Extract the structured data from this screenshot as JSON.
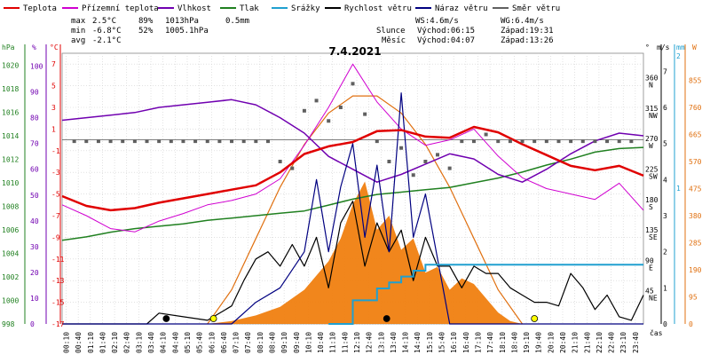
{
  "chart_data": {
    "type": "line",
    "title": "7.4.2021",
    "legend": [
      {
        "name": "Teplota",
        "color": "#e00000"
      },
      {
        "name": "Přízemní teplota",
        "color": "#d000d0"
      },
      {
        "name": "Vlhkost",
        "color": "#7000b0"
      },
      {
        "name": "Tlak",
        "color": "#208020"
      },
      {
        "name": "Srážky",
        "color": "#20a0d0"
      },
      {
        "name": "Rychlost větru",
        "color": "#000000"
      },
      {
        "name": "Náraz větru",
        "color": "#000080"
      },
      {
        "name": "Směr větru",
        "color": "#606060"
      }
    ],
    "stats": {
      "max_label": "max",
      "max_temp": "2.5°C",
      "max_hum": "89%",
      "max_press": "1013hPa",
      "precip": "0.5mm",
      "min_label": "min",
      "min_temp": "-6.8°C",
      "min_hum": "52%",
      "min_press": "1005.1hPa",
      "avg_label": "avg",
      "avg_temp": "-2.1°C",
      "ws": "WS:4.6m/s",
      "wg": "WG:6.4m/s",
      "sun_label": "Slunce",
      "sun_rise": "Východ:06:15",
      "sun_set": "Západ:19:31",
      "moon_label": "Měsíc",
      "moon_rise": "Východ:04:07",
      "moon_set": "Západ:13:26"
    },
    "axis_units": {
      "hpa": "hPa",
      "pct": "%",
      "degc": "°C",
      "deg": "°",
      "ms": "m/s",
      "mm": "mm",
      "wm2": "W",
      "time": "čas"
    },
    "xlabel": "čas",
    "x_ticks": [
      "00:10",
      "00:40",
      "01:10",
      "01:40",
      "02:10",
      "02:40",
      "03:10",
      "03:40",
      "04:10",
      "04:40",
      "05:10",
      "05:40",
      "06:10",
      "06:40",
      "07:10",
      "07:40",
      "08:10",
      "08:40",
      "09:10",
      "09:40",
      "10:10",
      "10:40",
      "11:10",
      "11:40",
      "12:10",
      "12:40",
      "13:10",
      "13:40",
      "14:10",
      "14:40",
      "15:10",
      "15:40",
      "16:10",
      "16:40",
      "17:10",
      "17:40",
      "18:10",
      "18:40",
      "19:10",
      "19:40",
      "20:10",
      "20:40",
      "21:10",
      "21:40",
      "22:10",
      "22:40",
      "23:10",
      "23:40"
    ],
    "pressure_ticks": [
      "1020",
      "1018",
      "1016",
      "1014",
      "1012",
      "1010",
      "1008",
      "1006",
      "1004",
      "1002",
      "1000",
      "998"
    ],
    "humidity_ticks": [
      "100",
      "90",
      "80",
      "70",
      "60",
      "50",
      "40",
      "30",
      "20",
      "10",
      "0"
    ],
    "temp_ticks": [
      "7",
      "5",
      "3",
      "1",
      "-1",
      "-3",
      "-5",
      "-7",
      "-9",
      "-11",
      "-13",
      "-15",
      "-17"
    ],
    "direction_ticks": [
      {
        "deg": "360",
        "dir": "N"
      },
      {
        "deg": "315",
        "dir": "NW"
      },
      {
        "deg": "270",
        "dir": "W"
      },
      {
        "deg": "225",
        "dir": "SW"
      },
      {
        "deg": "180",
        "dir": "S"
      },
      {
        "deg": "135",
        "dir": "SE"
      },
      {
        "deg": "90",
        "dir": "E"
      },
      {
        "deg": "45",
        "dir": "NE"
      }
    ],
    "wind_ticks": [
      "7",
      "6",
      "5",
      "4",
      "3",
      "2",
      "1",
      "0"
    ],
    "precip_ticks": [
      "2",
      "1"
    ],
    "solar_ticks": [
      "855",
      "760",
      "665",
      "570",
      "475",
      "380",
      "285",
      "190",
      "95",
      "0"
    ],
    "ylim_temp": [
      -17,
      8
    ],
    "ylim_pressure": [
      998,
      1021
    ],
    "ylim_humidity": [
      0,
      105
    ],
    "ylim_wind": [
      0,
      7.5
    ],
    "ylim_solar": [
      0,
      950
    ],
    "series": [
      {
        "name": "Teplota",
        "x": [
          0,
          1,
          2,
          3,
          4,
          5,
          6,
          7,
          8,
          9,
          10,
          11,
          12,
          13,
          14,
          15,
          16,
          17,
          18,
          19,
          20,
          21,
          22,
          23,
          24
        ],
        "values": [
          -5.2,
          -6.1,
          -6.5,
          -6.3,
          -5.8,
          -5.4,
          -5.0,
          -4.6,
          -4.2,
          -3.0,
          -1.3,
          -0.6,
          -0.2,
          0.8,
          0.9,
          0.3,
          0.2,
          1.2,
          0.7,
          -0.4,
          -1.4,
          -2.4,
          -2.8,
          -2.4,
          -3.3
        ]
      },
      {
        "name": "Přízemní teplota",
        "x": [
          0,
          1,
          2,
          3,
          4,
          5,
          6,
          7,
          8,
          9,
          10,
          11,
          12,
          13,
          14,
          15,
          16,
          17,
          18,
          19,
          20,
          21,
          22,
          23,
          24
        ],
        "values": [
          -6.0,
          -7.0,
          -8.2,
          -8.5,
          -7.5,
          -6.8,
          -6.0,
          -5.6,
          -5.0,
          -3.6,
          -0.5,
          3.0,
          7.0,
          3.5,
          1.0,
          -0.5,
          0.0,
          1.0,
          -1.5,
          -3.5,
          -4.5,
          -5.0,
          -5.5,
          -4.0,
          -6.5
        ]
      },
      {
        "name": "Vlhkost",
        "x": [
          0,
          1,
          2,
          3,
          4,
          5,
          6,
          7,
          8,
          9,
          10,
          11,
          12,
          13,
          14,
          15,
          16,
          17,
          18,
          19,
          20,
          21,
          22,
          23,
          24
        ],
        "values": [
          79,
          80,
          81,
          82,
          84,
          85,
          86,
          87,
          85,
          80,
          74,
          65,
          60,
          55,
          58,
          62,
          66,
          64,
          58,
          55,
          60,
          66,
          71,
          74,
          73
        ]
      },
      {
        "name": "Tlak",
        "x": [
          0,
          1,
          2,
          3,
          4,
          5,
          6,
          7,
          8,
          9,
          10,
          11,
          12,
          13,
          14,
          15,
          16,
          17,
          18,
          19,
          20,
          21,
          22,
          23,
          24
        ],
        "values": [
          1005.1,
          1005.4,
          1005.8,
          1006.1,
          1006.3,
          1006.5,
          1006.8,
          1007.0,
          1007.2,
          1007.4,
          1007.6,
          1008.1,
          1008.6,
          1009.0,
          1009.2,
          1009.4,
          1009.6,
          1010.0,
          1010.4,
          1010.9,
          1011.5,
          1012.0,
          1012.6,
          1012.9,
          1013.0
        ]
      },
      {
        "name": "Rychlost větru",
        "x": [
          0,
          3.5,
          4,
          5,
          6,
          7,
          7.5,
          8,
          8.5,
          9,
          9.5,
          10,
          10.5,
          11,
          11.5,
          12,
          12.5,
          13,
          13.5,
          14,
          14.5,
          15,
          15.5,
          16,
          16.5,
          17,
          17.5,
          18,
          18.5,
          19,
          19.5,
          20,
          20.5,
          21,
          21.5,
          22,
          22.5,
          23,
          23.5,
          24
        ],
        "values": [
          0,
          0,
          0.3,
          0.2,
          0.1,
          0.5,
          1.2,
          1.8,
          2.0,
          1.6,
          2.2,
          1.6,
          2.4,
          1.0,
          2.8,
          3.4,
          1.6,
          2.8,
          2.0,
          2.6,
          1.2,
          2.4,
          1.6,
          1.6,
          1.0,
          1.6,
          1.4,
          1.4,
          1.0,
          0.8,
          0.6,
          0.6,
          0.5,
          1.4,
          1.0,
          0.4,
          0.8,
          0.2,
          0.1,
          0.8
        ]
      },
      {
        "name": "Náraz větru",
        "x": [
          0,
          7,
          8,
          9,
          10,
          10.5,
          11,
          11.5,
          12,
          12.5,
          13,
          13.5,
          14,
          14.5,
          15,
          16,
          17,
          24
        ],
        "values": [
          0,
          0,
          0.6,
          1.0,
          2.0,
          4.0,
          2.0,
          3.8,
          5.0,
          2.4,
          4.4,
          2.0,
          6.4,
          2.4,
          3.6,
          0,
          0,
          0
        ]
      },
      {
        "name": "Směr větru",
        "x": [
          0.5,
          1,
          1.5,
          2,
          2.5,
          3,
          3.5,
          4,
          4.5,
          5,
          5.5,
          6,
          6.5,
          7,
          7.5,
          8,
          8.5,
          9,
          9.5,
          10,
          10.5,
          11,
          11.5,
          12,
          12.5,
          13,
          13.5,
          14,
          14.5,
          15,
          15.5,
          16,
          16.5,
          17,
          17.5,
          18,
          18.5,
          19,
          19.5,
          20,
          20.5,
          21,
          21.5,
          22,
          22.5,
          23,
          23.5
        ],
        "values": [
          270,
          270,
          270,
          270,
          270,
          270,
          270,
          270,
          270,
          270,
          270,
          270,
          270,
          270,
          270,
          270,
          270,
          240,
          230,
          315,
          330,
          300,
          320,
          355,
          310,
          270,
          240,
          260,
          220,
          240,
          250,
          230,
          270,
          270,
          280,
          270,
          270,
          270,
          270,
          270,
          270,
          270,
          270,
          270,
          270,
          270,
          270
        ]
      },
      {
        "name": "Srážky",
        "x": [
          11,
          12,
          12.5,
          13,
          13.5,
          14,
          14.5,
          15,
          24
        ],
        "values": [
          0,
          0.2,
          0.2,
          0.3,
          0.35,
          0.4,
          0.45,
          0.5,
          0.5
        ]
      },
      {
        "name": "Solar",
        "x": [
          6,
          7,
          8,
          9,
          10,
          11,
          11.5,
          12,
          12.5,
          13,
          13.5,
          14,
          14.5,
          15,
          15.5,
          16,
          16.5,
          17,
          17.5,
          18,
          18.5,
          19
        ],
        "values": [
          0,
          10,
          30,
          60,
          120,
          220,
          300,
          420,
          500,
          330,
          380,
          260,
          300,
          180,
          200,
          120,
          160,
          140,
          90,
          40,
          10,
          0
        ]
      },
      {
        "name": "Solar max",
        "x": [
          6,
          7,
          8,
          9,
          10,
          11,
          12,
          13,
          14,
          15,
          16,
          17,
          18,
          19
        ],
        "values": [
          0,
          120,
          300,
          480,
          630,
          740,
          800,
          800,
          740,
          630,
          480,
          300,
          120,
          0
        ]
      }
    ],
    "markers": [
      {
        "x": 4.3,
        "type": "moon-rise"
      },
      {
        "x": 6.25,
        "type": "sun-rise"
      },
      {
        "x": 13.4,
        "type": "moon-set"
      },
      {
        "x": 19.5,
        "type": "sun-set"
      }
    ]
  }
}
